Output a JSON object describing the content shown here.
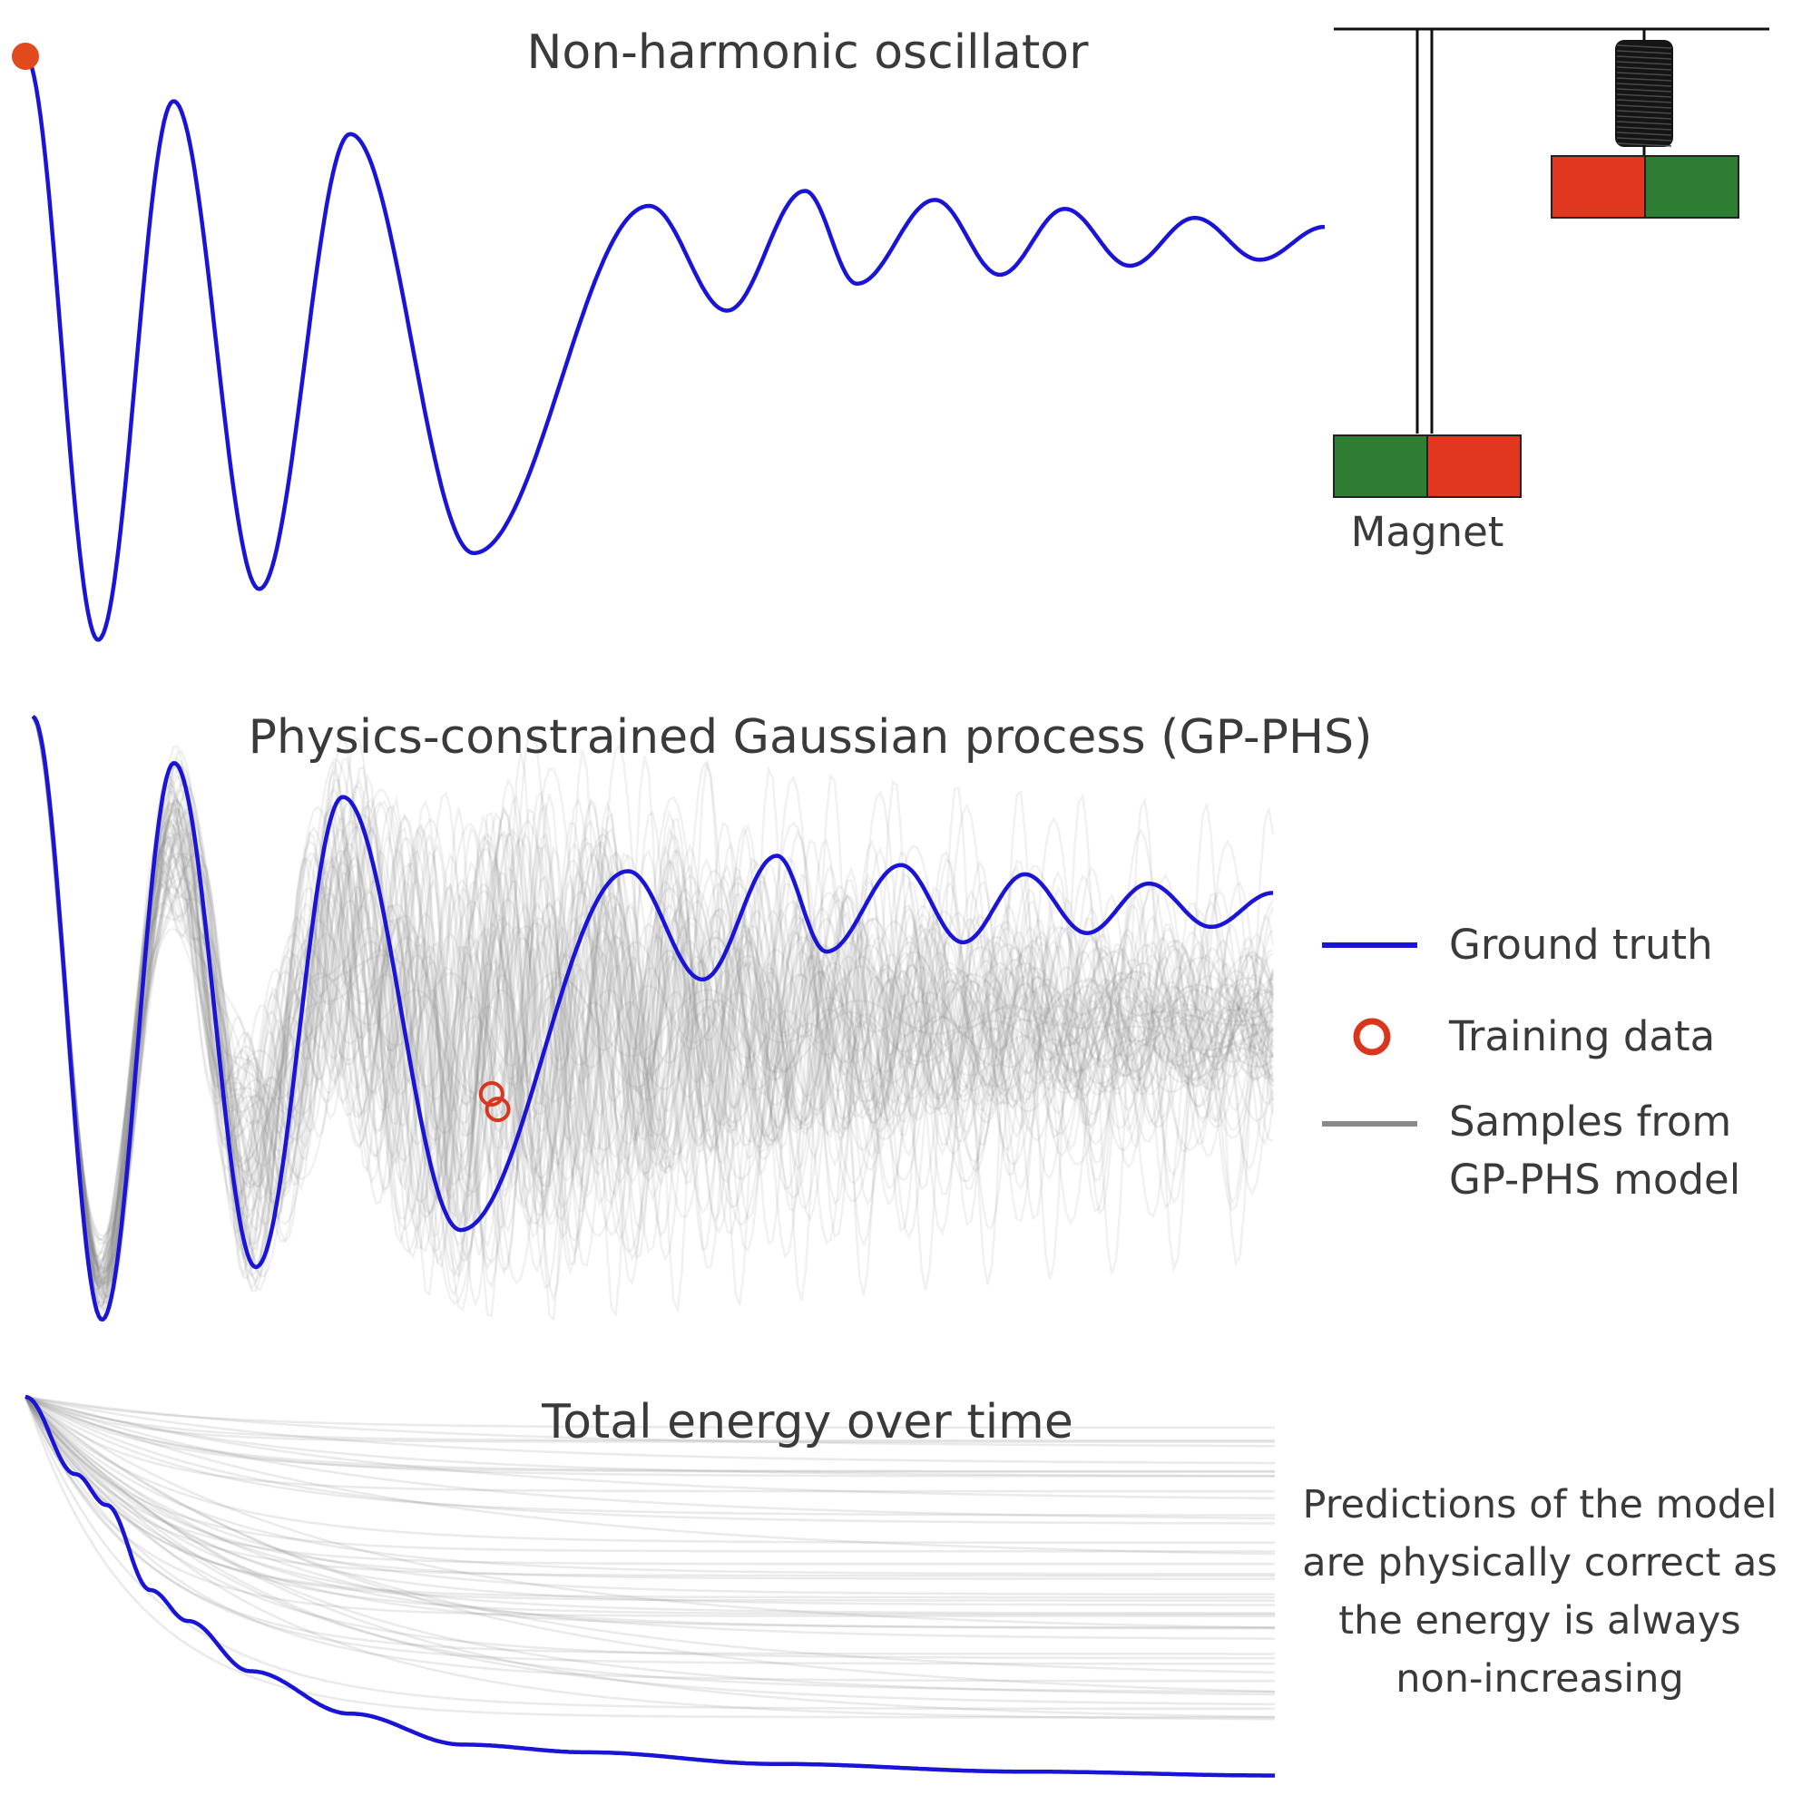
{
  "colors": {
    "ground_truth": "#1a14d6",
    "training_data": "#d9361e",
    "samples": "#8a8a8a",
    "magnet_red": "#e0371e",
    "magnet_green": "#2e7d32",
    "start_marker": "#e04a1c"
  },
  "diagram": {
    "magnet_label": "Magnet"
  },
  "legend": {
    "ground_truth": "Ground truth",
    "training_data": "Training data",
    "samples_line1": "Samples from",
    "samples_line2": "GP-PHS model"
  },
  "note": {
    "line1": "Predictions of the model",
    "line2": "are physically correct as",
    "line3": "the energy is always",
    "line4": "non-increasing"
  },
  "chart_data": [
    {
      "type": "line",
      "title": "Non-harmonic oscillator",
      "grid": false,
      "series": [
        {
          "name": "Ground truth",
          "points": [
            [
              0.0,
              1.0
            ],
            [
              0.056,
              -0.95
            ],
            [
              0.114,
              0.85
            ],
            [
              0.18,
              -0.78
            ],
            [
              0.25,
              0.74
            ],
            [
              0.345,
              -0.66
            ],
            [
              0.48,
              0.5
            ],
            [
              0.54,
              0.15
            ],
            [
              0.6,
              0.55
            ],
            [
              0.64,
              0.24
            ],
            [
              0.7,
              0.52
            ],
            [
              0.75,
              0.27
            ],
            [
              0.8,
              0.49
            ],
            [
              0.85,
              0.3
            ],
            [
              0.9,
              0.46
            ],
            [
              0.95,
              0.32
            ],
            [
              1.0,
              0.43
            ]
          ]
        }
      ]
    },
    {
      "type": "line",
      "title": "Physics-constrained Gaussian process (GP-PHS)",
      "grid": false,
      "legend": "right",
      "series": [
        {
          "name": "Ground truth",
          "points": [
            [
              0.0,
              1.0
            ],
            [
              0.056,
              -0.95
            ],
            [
              0.114,
              0.85
            ],
            [
              0.18,
              -0.78
            ],
            [
              0.25,
              0.74
            ],
            [
              0.345,
              -0.66
            ],
            [
              0.48,
              0.5
            ],
            [
              0.54,
              0.15
            ],
            [
              0.6,
              0.55
            ],
            [
              0.64,
              0.24
            ],
            [
              0.7,
              0.52
            ],
            [
              0.75,
              0.27
            ],
            [
              0.8,
              0.49
            ],
            [
              0.85,
              0.3
            ],
            [
              0.9,
              0.46
            ],
            [
              0.95,
              0.32
            ],
            [
              1.0,
              0.43
            ]
          ]
        },
        {
          "name": "Training data",
          "points": [
            [
              0.37,
              -0.22
            ],
            [
              0.375,
              -0.27
            ]
          ]
        }
      ]
    },
    {
      "type": "line",
      "title": "Total energy over time",
      "grid": false,
      "series": [
        {
          "name": "Ground truth",
          "points": [
            [
              0.0,
              1.0
            ],
            [
              0.04,
              0.8
            ],
            [
              0.065,
              0.72
            ],
            [
              0.1,
              0.5
            ],
            [
              0.13,
              0.42
            ],
            [
              0.18,
              0.29
            ],
            [
              0.26,
              0.18
            ],
            [
              0.35,
              0.1
            ],
            [
              0.45,
              0.08
            ],
            [
              0.6,
              0.05
            ],
            [
              0.8,
              0.03
            ],
            [
              1.0,
              0.02
            ]
          ]
        }
      ]
    }
  ]
}
